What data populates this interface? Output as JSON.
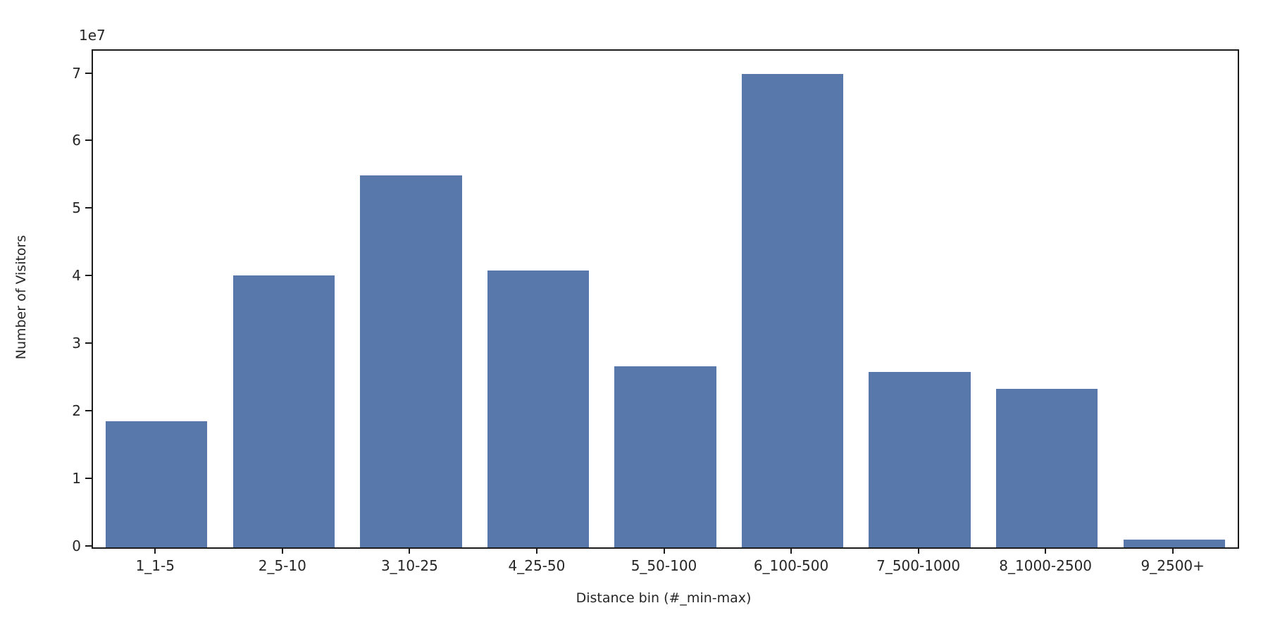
{
  "chart_data": {
    "type": "bar",
    "title": "",
    "xlabel": "Distance bin (#_min-max)",
    "ylabel": "Number of Visitors",
    "y_offset_label": "1e7",
    "categories": [
      "1_1-5",
      "2_5-10",
      "3_10-25",
      "4_25-50",
      "5_50-100",
      "6_100-500",
      "7_500-1000",
      "8_1000-2500",
      "9_2500+"
    ],
    "values": [
      18700000,
      40200000,
      55000000,
      41000000,
      26800000,
      70100000,
      26000000,
      23500000,
      1200000
    ],
    "bar_color": "#5878ab",
    "ylim": [
      0,
      73500000
    ],
    "yticks": [
      0,
      1,
      2,
      3,
      4,
      5,
      6,
      7
    ],
    "ytick_scale": 10000000,
    "grid": false,
    "legend": null,
    "bar_width_fraction": 0.8
  }
}
